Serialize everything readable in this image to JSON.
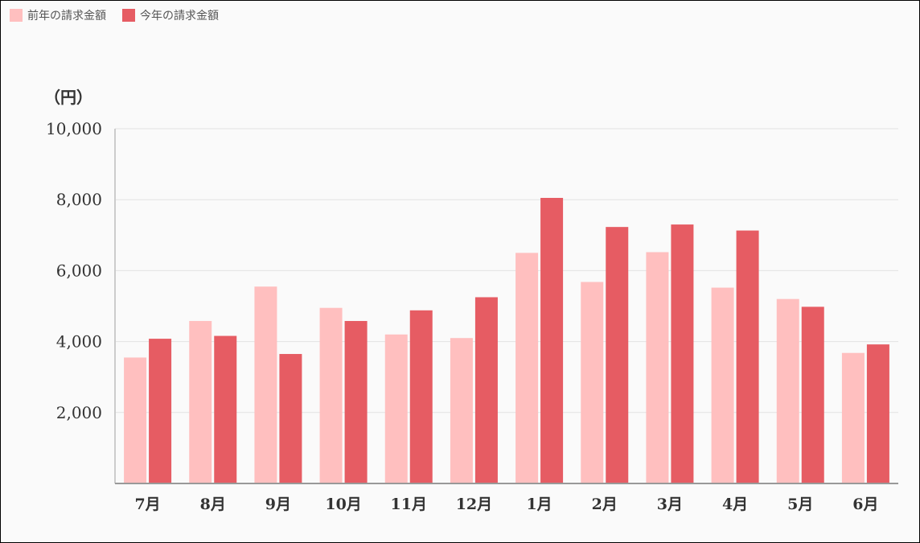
{
  "colors": {
    "prev": "#ffbfbf",
    "curr": "#e65c63"
  },
  "chart_data": {
    "type": "bar",
    "unit_label": "（円）",
    "categories": [
      "7月",
      "8月",
      "9月",
      "10月",
      "11月",
      "12月",
      "1月",
      "2月",
      "3月",
      "4月",
      "5月",
      "6月"
    ],
    "series": [
      {
        "name": "前年の請求金額",
        "values": [
          3550,
          4580,
          5550,
          4950,
          4200,
          4100,
          6500,
          5680,
          6520,
          5520,
          5200,
          3680
        ]
      },
      {
        "name": "今年の請求金額",
        "values": [
          4080,
          4160,
          3650,
          4580,
          4880,
          5250,
          8050,
          7230,
          7300,
          7130,
          4980,
          3920
        ]
      }
    ],
    "ylim": [
      0,
      10000
    ],
    "yticks": [
      "2,000",
      "4,000",
      "6,000",
      "8,000",
      "10,000"
    ],
    "ytick_values": [
      2000,
      4000,
      6000,
      8000,
      10000
    ],
    "grid": true,
    "legend_position": "top-left"
  }
}
